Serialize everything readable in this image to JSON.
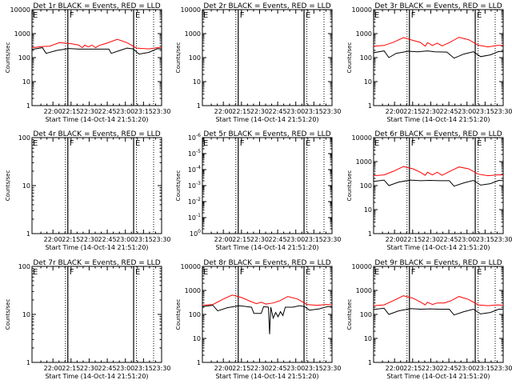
{
  "chart_data": [
    {
      "type": "line",
      "title": "Det 1r  BLACK = Events, RED = LLD",
      "ylabel": "Counts/sec",
      "xlabel": "Start Time (14-Oct-14 21:51:20)",
      "x_ticks": [
        "22:00",
        "22:15",
        "22:30",
        "22:45",
        "23:00",
        "23:15",
        "23:30"
      ],
      "y_ticks": [
        "1",
        "10",
        "100",
        "1000",
        "10000"
      ],
      "yscale": "log",
      "ylim": [
        1,
        10000
      ],
      "xlim_minutes_after_start": [
        -8.67,
        98.67
      ],
      "markers": [
        {
          "x_minutes": 21.0,
          "label": "F"
        },
        {
          "x_minutes": 75.5,
          "label": "E"
        }
      ],
      "series": [
        {
          "color": "#000000",
          "points": [
            [
              -8.67,
              220
            ],
            [
              0,
              260
            ],
            [
              3,
              150
            ],
            [
              12,
              200
            ],
            [
              22,
              240
            ],
            [
              30,
              225
            ],
            [
              40,
              225
            ],
            [
              50,
              225
            ],
            [
              55,
              225
            ],
            [
              57,
              150
            ],
            [
              63,
              190
            ],
            [
              70,
              250
            ],
            [
              75,
              230
            ],
            [
              80,
              140
            ],
            [
              88,
              165
            ],
            [
              95,
              235
            ],
            [
              98.67,
              230
            ]
          ]
        },
        {
          "color": "#ff0000",
          "points": [
            [
              -8.67,
              260
            ],
            [
              0,
              290
            ],
            [
              6,
              300
            ],
            [
              14,
              420
            ],
            [
              24,
              380
            ],
            [
              30,
              330
            ],
            [
              33,
              260
            ],
            [
              35,
              330
            ],
            [
              38,
              280
            ],
            [
              41,
              330
            ],
            [
              44,
              260
            ],
            [
              47,
              320
            ],
            [
              52,
              380
            ],
            [
              62,
              580
            ],
            [
              70,
              420
            ],
            [
              78,
              250
            ],
            [
              88,
              230
            ],
            [
              95,
              260
            ],
            [
              98.67,
              260
            ]
          ]
        }
      ]
    },
    {
      "type": "line",
      "title": "Det 2r  BLACK = Events, RED = LLD",
      "ylabel": "Counts/sec",
      "xlabel": "Start Time (14-Oct-14 21:51:20)",
      "x_ticks": [
        "22:00",
        "22:15",
        "22:30",
        "22:45",
        "23:00",
        "23:15",
        "23:30"
      ],
      "y_ticks": [
        "1",
        "10",
        "100",
        "1000",
        "10000"
      ],
      "yscale": "log",
      "ylim": [
        1,
        10000
      ],
      "xlim_minutes_after_start": [
        -8.67,
        98.67
      ],
      "markers": [
        {
          "x_minutes": 21.0,
          "label": "F"
        },
        {
          "x_minutes": 75.5,
          "label": "E"
        }
      ],
      "series": []
    },
    {
      "type": "line",
      "title": "Det 3r  BLACK = Events, RED = LLD",
      "ylabel": "Counts/sec",
      "xlabel": "Start Time (14-Oct-14 21:51:20)",
      "x_ticks": [
        "22:00",
        "22:15",
        "22:30",
        "22:45",
        "23:00",
        "23:15",
        "23:30"
      ],
      "y_ticks": [
        "1",
        "10",
        "100",
        "1000",
        "10000"
      ],
      "yscale": "log",
      "ylim": [
        1,
        10000
      ],
      "xlim_minutes_after_start": [
        -8.67,
        98.67
      ],
      "markers": [
        {
          "x_minutes": 21.0,
          "label": "F"
        },
        {
          "x_minutes": 75.5,
          "label": "E"
        }
      ],
      "series": [
        {
          "color": "#000000",
          "points": [
            [
              -8.67,
              160
            ],
            [
              0,
              190
            ],
            [
              4,
              100
            ],
            [
              10,
              150
            ],
            [
              20,
              185
            ],
            [
              28,
              175
            ],
            [
              36,
              190
            ],
            [
              42,
              175
            ],
            [
              52,
              170
            ],
            [
              58,
              95
            ],
            [
              66,
              140
            ],
            [
              74,
              175
            ],
            [
              80,
              110
            ],
            [
              88,
              130
            ],
            [
              95,
              180
            ],
            [
              98.67,
              175
            ]
          ]
        },
        {
          "color": "#ff0000",
          "points": [
            [
              -8.67,
              300
            ],
            [
              0,
              320
            ],
            [
              8,
              440
            ],
            [
              16,
              680
            ],
            [
              22,
              560
            ],
            [
              30,
              430
            ],
            [
              34,
              300
            ],
            [
              36,
              420
            ],
            [
              40,
              320
            ],
            [
              44,
              400
            ],
            [
              48,
              310
            ],
            [
              54,
              420
            ],
            [
              62,
              700
            ],
            [
              70,
              560
            ],
            [
              78,
              330
            ],
            [
              86,
              280
            ],
            [
              94,
              320
            ],
            [
              98.67,
              320
            ]
          ]
        }
      ]
    },
    {
      "type": "line",
      "title": "Det 4r  BLACK = Events, RED = LLD",
      "ylabel": "Counts/sec",
      "xlabel": "Start Time (14-Oct-14 21:51:20)",
      "x_ticks": [
        "22:00",
        "22:15",
        "22:30",
        "22:45",
        "23:00",
        "23:15",
        "23:30"
      ],
      "y_ticks": [
        "1",
        "10",
        "100"
      ],
      "yscale": "log",
      "ylim": [
        1,
        100
      ],
      "xlim_minutes_after_start": [
        -8.67,
        98.67
      ],
      "markers": [
        {
          "x_minutes": 21.0,
          "label": "F"
        },
        {
          "x_minutes": 75.5,
          "label": "E"
        }
      ],
      "series": []
    },
    {
      "type": "line",
      "title": "Det 5r  BLACK = Events, RED = LLD",
      "ylabel": "Counts/sec",
      "xlabel": "Start Time (14-Oct-14 21:51:20)",
      "x_ticks": [
        "22:00",
        "22:15",
        "22:30",
        "22:45",
        "23:00",
        "23:15",
        "23:30"
      ],
      "y_ticks": [
        "10^0",
        "10^-1",
        "10^-2",
        "10^-3",
        "10^-4",
        "10^-5",
        "10^-6"
      ],
      "yscale": "log",
      "ylim": [
        1,
        1e-06
      ],
      "xlim_minutes_after_start": [
        -8.67,
        98.67
      ],
      "markers": [
        {
          "x_minutes": 21.0,
          "label": "F"
        },
        {
          "x_minutes": 75.5,
          "label": "E"
        }
      ],
      "series": []
    },
    {
      "type": "line",
      "title": "Det 6r  BLACK = Events, RED = LLD",
      "ylabel": "Counts/sec",
      "xlabel": "Start Time (14-Oct-14 21:51:20)",
      "x_ticks": [
        "22:00",
        "22:15",
        "22:30",
        "22:45",
        "23:00",
        "23:15",
        "23:30"
      ],
      "y_ticks": [
        "1",
        "10",
        "100",
        "1000",
        "10000"
      ],
      "yscale": "log",
      "ylim": [
        1,
        10000
      ],
      "xlim_minutes_after_start": [
        -8.67,
        98.67
      ],
      "markers": [
        {
          "x_minutes": 21.0,
          "label": "F"
        },
        {
          "x_minutes": 75.5,
          "label": "E"
        }
      ],
      "series": [
        {
          "color": "#000000",
          "points": [
            [
              -8.67,
              150
            ],
            [
              0,
              170
            ],
            [
              4,
              100
            ],
            [
              12,
              140
            ],
            [
              22,
              170
            ],
            [
              30,
              160
            ],
            [
              38,
              165
            ],
            [
              46,
              160
            ],
            [
              54,
              160
            ],
            [
              58,
              95
            ],
            [
              66,
              130
            ],
            [
              74,
              165
            ],
            [
              80,
              105
            ],
            [
              88,
              120
            ],
            [
              95,
              165
            ],
            [
              98.67,
              160
            ]
          ]
        },
        {
          "color": "#ff0000",
          "points": [
            [
              -8.67,
              260
            ],
            [
              0,
              280
            ],
            [
              8,
              400
            ],
            [
              16,
              620
            ],
            [
              24,
              500
            ],
            [
              30,
              360
            ],
            [
              34,
              270
            ],
            [
              36,
              360
            ],
            [
              40,
              280
            ],
            [
              44,
              360
            ],
            [
              48,
              270
            ],
            [
              54,
              380
            ],
            [
              62,
              600
            ],
            [
              70,
              500
            ],
            [
              78,
              300
            ],
            [
              86,
              260
            ],
            [
              94,
              280
            ],
            [
              98.67,
              280
            ]
          ]
        }
      ]
    },
    {
      "type": "line",
      "title": "Det 7r  BLACK = Events, RED = LLD",
      "ylabel": "Counts/sec",
      "xlabel": "Start Time (14-Oct-14 21:51:20)",
      "x_ticks": [
        "22:00",
        "22:15",
        "22:30",
        "22:45",
        "23:00",
        "23:15",
        "23:30"
      ],
      "y_ticks": [
        "1",
        "10",
        "100"
      ],
      "yscale": "log",
      "ylim": [
        1,
        100
      ],
      "xlim_minutes_after_start": [
        -8.67,
        98.67
      ],
      "markers": [
        {
          "x_minutes": 21.0,
          "label": "F"
        },
        {
          "x_minutes": 75.5,
          "label": "E"
        }
      ],
      "series": []
    },
    {
      "type": "line",
      "title": "Det 8r  BLACK = Events, RED = LLD",
      "ylabel": "Counts/sec",
      "xlabel": "Start Time (14-Oct-14 21:51:20)",
      "x_ticks": [
        "22:00",
        "22:15",
        "22:30",
        "22:45",
        "23:00",
        "23:15",
        "23:30"
      ],
      "y_ticks": [
        "1",
        "10",
        "100",
        "1000",
        "10000"
      ],
      "yscale": "log",
      "ylim": [
        1,
        10000
      ],
      "xlim_minutes_after_start": [
        -8.67,
        98.67
      ],
      "markers": [
        {
          "x_minutes": 21.0,
          "label": "F"
        },
        {
          "x_minutes": 75.5,
          "label": "E"
        }
      ],
      "series": [
        {
          "color": "#000000",
          "points": [
            [
              -8.67,
              210
            ],
            [
              0,
              240
            ],
            [
              4,
              140
            ],
            [
              12,
              190
            ],
            [
              22,
              230
            ],
            [
              28,
              210
            ],
            [
              32,
              200
            ],
            [
              34,
              110
            ],
            [
              40,
              110
            ],
            [
              42,
              210
            ],
            [
              46,
              200
            ],
            [
              47,
              15
            ],
            [
              48,
              200
            ],
            [
              50,
              70
            ],
            [
              52,
              120
            ],
            [
              54,
              80
            ],
            [
              56,
              130
            ],
            [
              58,
              90
            ],
            [
              60,
              200
            ],
            [
              66,
              200
            ],
            [
              72,
              230
            ],
            [
              76,
              210
            ],
            [
              80,
              150
            ],
            [
              88,
              170
            ],
            [
              95,
              210
            ],
            [
              98.67,
              210
            ]
          ]
        },
        {
          "color": "#ff0000",
          "points": [
            [
              -8.67,
              240
            ],
            [
              0,
              260
            ],
            [
              8,
              420
            ],
            [
              16,
              640
            ],
            [
              24,
              500
            ],
            [
              30,
              370
            ],
            [
              36,
              280
            ],
            [
              40,
              320
            ],
            [
              44,
              270
            ],
            [
              50,
              300
            ],
            [
              56,
              380
            ],
            [
              62,
              560
            ],
            [
              70,
              440
            ],
            [
              78,
              260
            ],
            [
              86,
              240
            ],
            [
              94,
              260
            ],
            [
              98.67,
              250
            ]
          ]
        }
      ]
    },
    {
      "type": "line",
      "title": "Det 9r  BLACK = Events, RED = LLD",
      "ylabel": "Counts/sec",
      "xlabel": "Start Time (14-Oct-14 21:51:20)",
      "x_ticks": [
        "22:00",
        "22:15",
        "22:30",
        "22:45",
        "23:00",
        "23:15",
        "23:30"
      ],
      "y_ticks": [
        "1",
        "10",
        "100",
        "1000",
        "10000"
      ],
      "yscale": "log",
      "ylim": [
        1,
        10000
      ],
      "xlim_minutes_after_start": [
        -8.67,
        98.67
      ],
      "markers": [
        {
          "x_minutes": 21.0,
          "label": "F"
        },
        {
          "x_minutes": 75.5,
          "label": "E"
        }
      ],
      "series": [
        {
          "color": "#000000",
          "points": [
            [
              -8.67,
              160
            ],
            [
              0,
              180
            ],
            [
              4,
              100
            ],
            [
              12,
              140
            ],
            [
              22,
              175
            ],
            [
              30,
              165
            ],
            [
              38,
              170
            ],
            [
              46,
              165
            ],
            [
              54,
              165
            ],
            [
              58,
              95
            ],
            [
              66,
              130
            ],
            [
              74,
              165
            ],
            [
              80,
              105
            ],
            [
              88,
              120
            ],
            [
              95,
              165
            ],
            [
              98.67,
              165
            ]
          ]
        },
        {
          "color": "#ff0000",
          "points": [
            [
              -8.67,
              230
            ],
            [
              0,
              250
            ],
            [
              8,
              380
            ],
            [
              16,
              600
            ],
            [
              24,
              470
            ],
            [
              30,
              330
            ],
            [
              34,
              250
            ],
            [
              36,
              320
            ],
            [
              40,
              260
            ],
            [
              44,
              300
            ],
            [
              50,
              300
            ],
            [
              56,
              380
            ],
            [
              62,
              560
            ],
            [
              70,
              420
            ],
            [
              78,
              250
            ],
            [
              86,
              230
            ],
            [
              94,
              250
            ],
            [
              98.67,
              240
            ]
          ]
        }
      ]
    }
  ]
}
